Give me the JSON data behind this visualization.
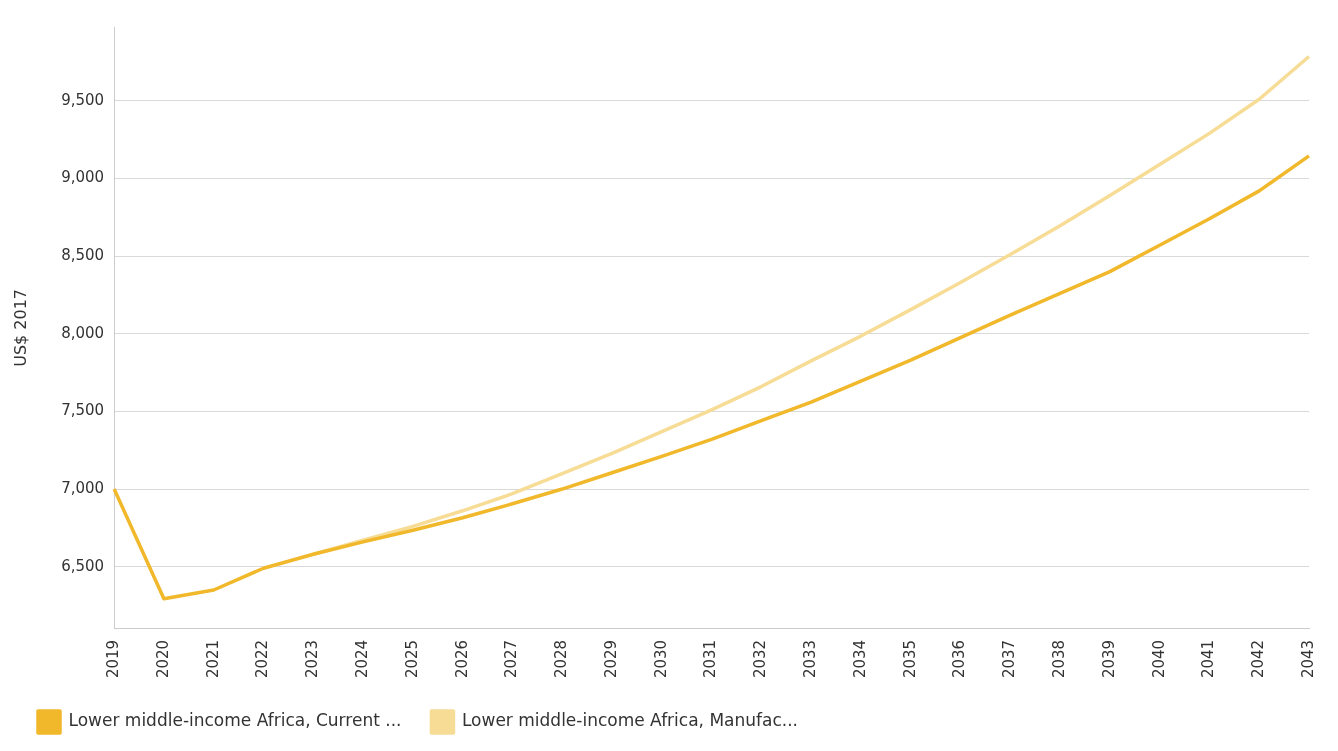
{
  "chart_data": {
    "type": "line",
    "ylabel": "US$ 2017",
    "categories": [
      "2019",
      "2020",
      "2021",
      "2022",
      "2023",
      "2024",
      "2025",
      "2026",
      "2027",
      "2028",
      "2029",
      "2030",
      "2031",
      "2032",
      "2033",
      "2034",
      "2035",
      "2036",
      "2037",
      "2038",
      "2039",
      "2040",
      "2041",
      "2042",
      "2043"
    ],
    "series": [
      {
        "name": "Lower middle-income Africa, Current ...",
        "color": "#f0b82a",
        "values": [
          7000,
          6294,
          6350,
          6490,
          6580,
          6660,
          6735,
          6815,
          6905,
          7000,
          7105,
          7210,
          7320,
          7440,
          7560,
          7695,
          7830,
          7975,
          8120,
          8260,
          8400,
          8570,
          8740,
          8920,
          9145
        ]
      },
      {
        "name": "Lower middle-income Africa, Manufac...",
        "color": "#f7dc96",
        "values": [
          null,
          null,
          null,
          null,
          6580,
          6670,
          6760,
          6860,
          6970,
          7100,
          7230,
          7370,
          7510,
          7660,
          7825,
          7985,
          8155,
          8330,
          8510,
          8695,
          8890,
          9090,
          9290,
          9510,
          9785
        ]
      }
    ],
    "ylim": [
      6100,
      9975
    ],
    "yticks": [
      {
        "value": 6500,
        "label": "6,500"
      },
      {
        "value": 7000,
        "label": "7,000"
      },
      {
        "value": 7500,
        "label": "7,500"
      },
      {
        "value": 8000,
        "label": "8,000"
      },
      {
        "value": 8500,
        "label": "8,500"
      },
      {
        "value": 9000,
        "label": "9,000"
      },
      {
        "value": 9500,
        "label": "9,500"
      }
    ],
    "grid": "y",
    "legend": "bottom left",
    "marker": "none",
    "line_style": "solid"
  }
}
